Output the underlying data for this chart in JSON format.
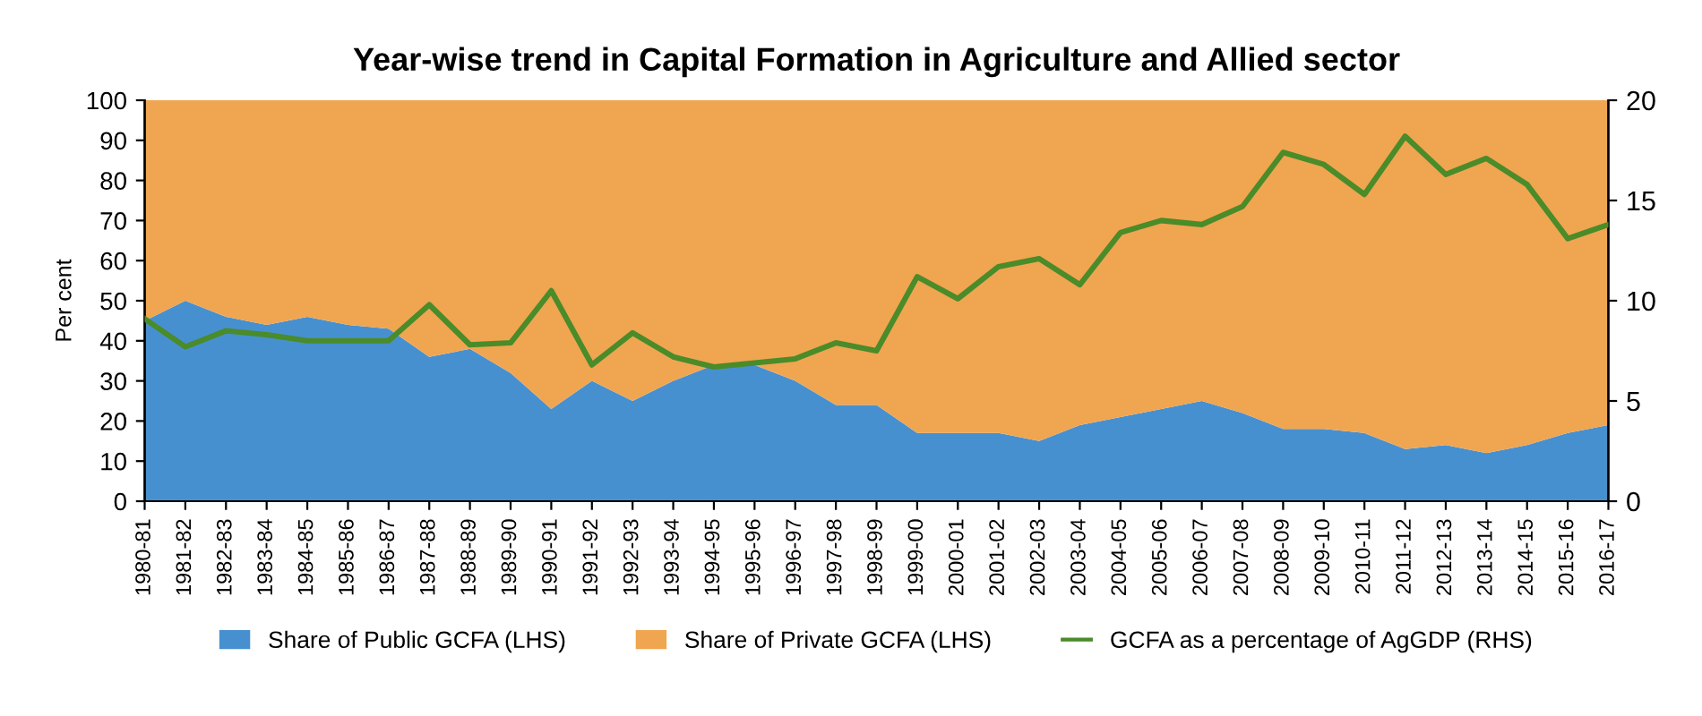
{
  "chart_data": {
    "type": "area",
    "title": "Year-wise trend in Capital Formation in Agriculture and Allied sector",
    "ylabel": "Per cent",
    "categories": [
      "1980-81",
      "1981-82",
      "1982-83",
      "1983-84",
      "1984-85",
      "1985-86",
      "1986-87",
      "1987-88",
      "1988-89",
      "1989-90",
      "1990-91",
      "1991-92",
      "1992-93",
      "1993-94",
      "1994-95",
      "1995-96",
      "1996-97",
      "1997-98",
      "1998-99",
      "1999-00",
      "2000-01",
      "2001-02",
      "2002-03",
      "2003-04",
      "2004-05",
      "2005-06",
      "2006-07",
      "2007-08",
      "2008-09",
      "2009-10",
      "2010-11",
      "2011-12",
      "2012-13",
      "2013-14",
      "2014-15",
      "2015-16",
      "2016-17"
    ],
    "stacked": true,
    "series": [
      {
        "name": "Share of Public GCFA (LHS)",
        "color": "#4790d0",
        "values": [
          45,
          50,
          46,
          44,
          46,
          44,
          43,
          36,
          38,
          32,
          23,
          30,
          25,
          30,
          34,
          34,
          30,
          24,
          24,
          17,
          17,
          17,
          15,
          19,
          21,
          23,
          25,
          22,
          18,
          18,
          17,
          13,
          14,
          12,
          14,
          17,
          19
        ]
      },
      {
        "name": "Share of Private GCFA (LHS)",
        "color": "#f0a550",
        "values": [
          55,
          50,
          54,
          56,
          54,
          56,
          57,
          64,
          62,
          68,
          77,
          70,
          75,
          70,
          66,
          66,
          70,
          76,
          76,
          83,
          83,
          83,
          85,
          81,
          79,
          77,
          75,
          78,
          82,
          82,
          83,
          87,
          86,
          88,
          86,
          83,
          81
        ]
      },
      {
        "name": "GCFA as a percentage of AgGDP (RHS)",
        "type": "line",
        "axis": "y2",
        "color": "#4a8b2a",
        "values": [
          9.1,
          7.7,
          8.5,
          8.3,
          8.0,
          8.0,
          8.0,
          9.8,
          7.8,
          7.9,
          10.5,
          6.8,
          8.4,
          7.2,
          6.7,
          6.9,
          7.1,
          7.9,
          7.5,
          11.2,
          10.1,
          11.7,
          12.1,
          10.8,
          13.4,
          14.0,
          13.8,
          14.7,
          17.4,
          16.8,
          15.3,
          18.2,
          16.3,
          17.1,
          15.8,
          13.1,
          13.8
        ]
      }
    ],
    "ylim": [
      0,
      100
    ],
    "yticks": [
      0,
      10,
      20,
      30,
      40,
      50,
      60,
      70,
      80,
      90,
      100
    ],
    "y2lim": [
      0,
      20
    ],
    "y2ticks": [
      0,
      5,
      10,
      15,
      20
    ],
    "legend": "bottom",
    "grid": false
  }
}
